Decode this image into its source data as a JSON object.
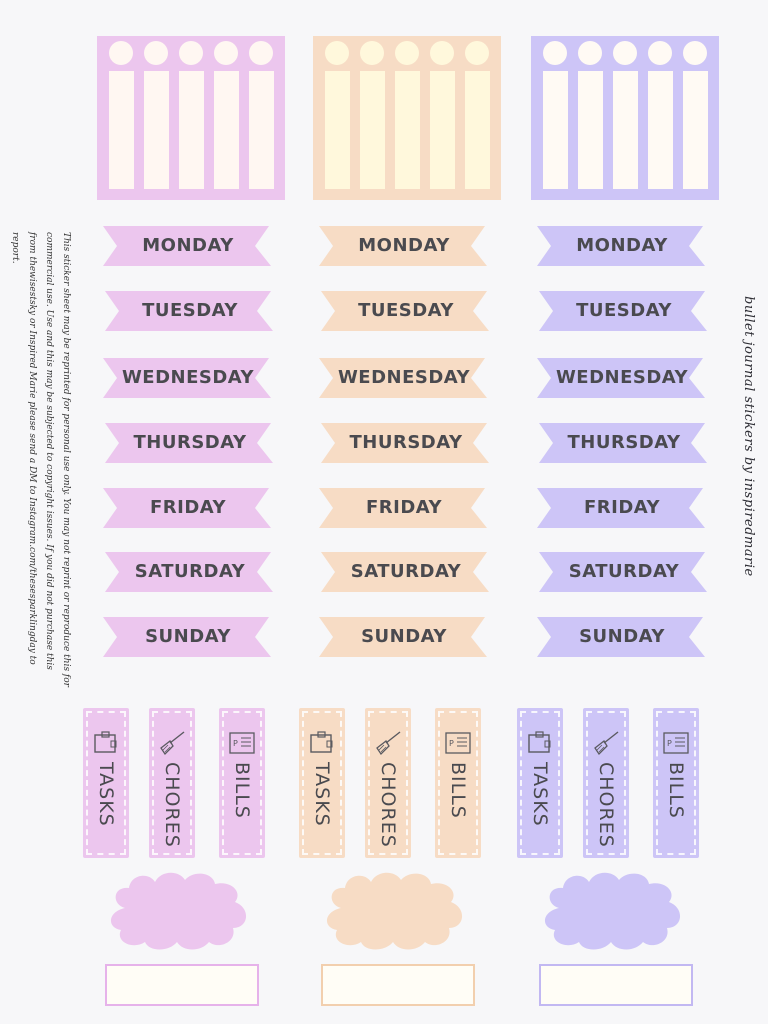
{
  "days": [
    "MONDAY",
    "TUESDAY",
    "WEDNESDAY",
    "THURSDAY",
    "FRIDAY",
    "SATURDAY",
    "SUNDAY"
  ],
  "tabs": [
    "TASKS",
    "CHORES",
    "BILLS"
  ],
  "tab_icons": [
    "clipboard-icon",
    "broom-icon",
    "bill-icon"
  ],
  "themes": [
    {
      "name": "pink",
      "main": "#ecc6ee",
      "light": "#fff7f2",
      "border": "#e6b2ea"
    },
    {
      "name": "peach",
      "main": "#f7dcc5",
      "light": "#fff8dc",
      "border": "#f2cfae"
    },
    {
      "name": "lavender",
      "main": "#cdc5f7",
      "light": "#fffaf4",
      "border": "#c2b8f2"
    }
  ],
  "side_note": "This sticker sheet may be reprinted for personal use only. You may not reprint or reproduce this for commercial use. Use and this may be subjected to copyright issues. If you did not purchase this from thewisestsky or Inspired Marie please send a DM to Instagram.com/thesesparklingday to report.",
  "side_title": "bullet journal stickers by inspiredmarie"
}
